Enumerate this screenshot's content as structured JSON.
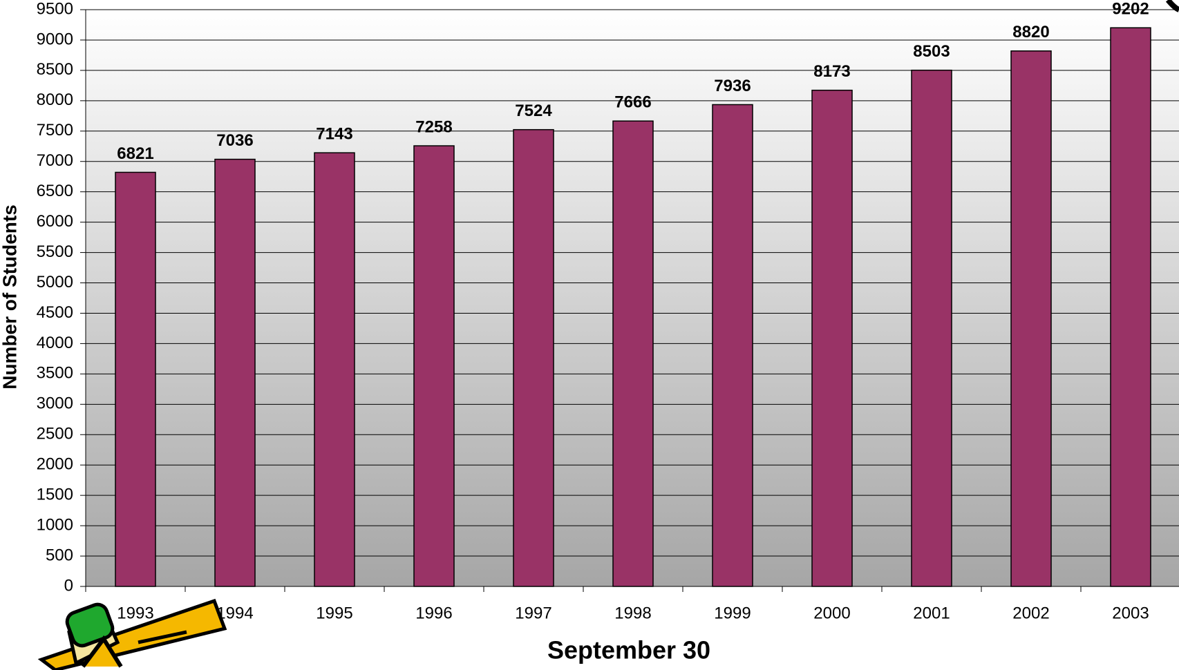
{
  "chart_data": {
    "type": "bar",
    "categories": [
      "1993",
      "1994",
      "1995",
      "1996",
      "1997",
      "1998",
      "1999",
      "2000",
      "2001",
      "2002",
      "2003"
    ],
    "values": [
      6821,
      7036,
      7143,
      7258,
      7524,
      7666,
      7936,
      8173,
      8503,
      8820,
      9202
    ],
    "color": "#993366",
    "x_label": "September 30",
    "y_label": "Number of Students",
    "ylim": [
      0,
      9500
    ],
    "yticks": [
      0,
      500,
      1000,
      1500,
      2000,
      2500,
      3000,
      3500,
      4000,
      4500,
      5000,
      5500,
      6000,
      6500,
      7000,
      7500,
      8000,
      8500,
      9000,
      9500
    ],
    "grid": true
  }
}
